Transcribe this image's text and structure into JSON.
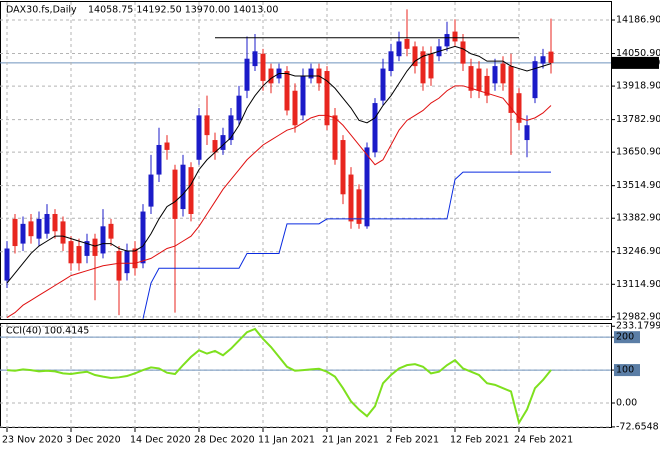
{
  "chart_data": [
    {
      "type": "candlestick",
      "title": "DAX30.fs,Daily",
      "subtitle": "14058.75 14192.50 13970.00 14013.00",
      "categories": [
        "23 Nov 2020",
        null,
        null,
        null,
        null,
        null,
        null,
        null,
        "3 Dec 2020",
        null,
        null,
        null,
        null,
        null,
        null,
        null,
        "14 Dec 2020",
        null,
        null,
        null,
        null,
        null,
        null,
        null,
        "28 Dec 2020",
        null,
        null,
        null,
        null,
        null,
        null,
        null,
        "11 Jan 2021",
        null,
        null,
        null,
        null,
        null,
        null,
        null,
        "21 Jan 2021",
        null,
        null,
        null,
        null,
        null,
        null,
        null,
        "2 Feb 2021",
        null,
        null,
        null,
        null,
        null,
        null,
        null,
        "12 Feb 2021",
        null,
        null,
        null,
        null,
        null,
        null,
        null,
        "24 Feb 2021",
        null,
        null,
        null,
        null
      ],
      "open": [
        13130,
        13380,
        13280,
        13370,
        13300,
        13320,
        13400,
        13370,
        13290,
        13270,
        13230,
        13300,
        13240,
        13360,
        13250,
        13160,
        13260,
        13200,
        13430,
        13560,
        13690,
        13580,
        13420,
        13590,
        13620,
        13800,
        13700,
        13660,
        13700,
        13780,
        13900,
        14000,
        14050,
        13990,
        13950,
        13980,
        13900,
        13800,
        13950,
        13990,
        13980,
        13800,
        13700,
        13560,
        13500,
        13350,
        13650,
        13860,
        13980,
        14040,
        14110,
        14080,
        14060,
        14050,
        14040,
        14080,
        14140,
        14100,
        14000,
        13990,
        13960,
        13930,
        14010,
        14000,
        13890,
        13700,
        13870,
        14010,
        14058.75
      ],
      "high": [
        13290,
        13400,
        13390,
        13400,
        13410,
        13440,
        13420,
        13390,
        13310,
        13300,
        13320,
        13320,
        13420,
        13380,
        13270,
        13280,
        13290,
        13440,
        13640,
        13750,
        13720,
        13600,
        13640,
        13610,
        13830,
        13880,
        13730,
        13750,
        13830,
        13920,
        14120,
        14130,
        14070,
        14010,
        14010,
        14000,
        13930,
        13990,
        14010,
        14010,
        14000,
        13830,
        13720,
        13590,
        13520,
        13690,
        13870,
        14030,
        14090,
        14140,
        14230,
        14100,
        14080,
        14080,
        14110,
        14180,
        14190,
        14130,
        14030,
        14020,
        13990,
        14030,
        14040,
        14050,
        13910,
        13800,
        14040,
        14070,
        14192.5
      ],
      "low": [
        13100,
        13240,
        13250,
        13280,
        13270,
        13300,
        13300,
        13250,
        13170,
        13170,
        13200,
        13050,
        13220,
        13270,
        12990,
        13130,
        13150,
        13180,
        13400,
        13530,
        13620,
        13000,
        13390,
        13370,
        13600,
        13680,
        13620,
        13640,
        13680,
        13760,
        13870,
        13980,
        13900,
        13890,
        13930,
        13800,
        13730,
        13780,
        13930,
        13900,
        13740,
        13600,
        13440,
        13340,
        13340,
        13340,
        13630,
        13840,
        13960,
        14020,
        14040,
        13970,
        13900,
        13920,
        14020,
        14060,
        14080,
        13980,
        13870,
        13870,
        13850,
        13900,
        13900,
        13640,
        13740,
        13630,
        13850,
        13990,
        13970
      ],
      "close": [
        13260,
        13270,
        13360,
        13310,
        13380,
        13400,
        13330,
        13280,
        13200,
        13200,
        13290,
        13230,
        13350,
        13300,
        13130,
        13250,
        13180,
        13410,
        13560,
        13680,
        13660,
        13380,
        13600,
        13400,
        13800,
        13720,
        13650,
        13720,
        13800,
        13880,
        14030,
        14060,
        13940,
        13930,
        13990,
        13820,
        13760,
        13960,
        13990,
        13930,
        13760,
        13620,
        13480,
        13370,
        13360,
        13670,
        13850,
        13990,
        14060,
        14100,
        14070,
        14000,
        13930,
        13950,
        14080,
        14130,
        14100,
        14010,
        13900,
        13900,
        13880,
        14000,
        13930,
        13810,
        13770,
        13760,
        14020,
        14040,
        14013
      ],
      "up_color": "#1b1bc8",
      "down_color": "#e8261f",
      "series": [
        {
          "color": "#000000",
          "values": [
            13120,
            13160,
            13200,
            13240,
            13270,
            13290,
            13310,
            13310,
            13300,
            13290,
            13280,
            13270,
            13280,
            13280,
            13260,
            13250,
            13250,
            13270,
            13320,
            13380,
            13430,
            13450,
            13480,
            13520,
            13580,
            13620,
            13650,
            13680,
            13710,
            13760,
            13830,
            13880,
            13920,
            13950,
            13970,
            13970,
            13960,
            13960,
            13960,
            13960,
            13940,
            13910,
            13870,
            13830,
            13780,
            13770,
            13790,
            13840,
            13880,
            13930,
            13980,
            14020,
            14040,
            14050,
            14060,
            14070,
            14080,
            14070,
            14050,
            14040,
            14020,
            14020,
            14020,
            14000,
            13990,
            13980,
            13990,
            14000,
            14010
          ]
        },
        {
          "color": "#e01010",
          "values": [
            12980,
            13000,
            13030,
            13050,
            13070,
            13090,
            13110,
            13130,
            13150,
            13160,
            13170,
            13180,
            13190,
            13195,
            13200,
            13200,
            13200,
            13210,
            13220,
            13240,
            13260,
            13270,
            13290,
            13310,
            13350,
            13400,
            13450,
            13500,
            13540,
            13580,
            13620,
            13650,
            13680,
            13700,
            13720,
            13740,
            13750,
            13770,
            13790,
            13800,
            13800,
            13790,
            13760,
            13720,
            13680,
            13640,
            13600,
            13620,
            13680,
            13740,
            13780,
            13800,
            13820,
            13850,
            13870,
            13900,
            13920,
            13920,
            13910,
            13900,
            13890,
            13880,
            13870,
            13830,
            13790,
            13780,
            13790,
            13810,
            13840
          ]
        },
        {
          "color": "#0a2be0",
          "values": [
            null,
            null,
            null,
            null,
            null,
            null,
            null,
            null,
            null,
            null,
            null,
            null,
            null,
            null,
            null,
            null,
            null,
            12975,
            13120,
            13180,
            13180,
            13180,
            13180,
            13180,
            13180,
            13180,
            13180,
            13180,
            13180,
            13180,
            13240,
            13240,
            13240,
            13240,
            13240,
            13360,
            13360,
            13360,
            13360,
            13360,
            13380,
            13380,
            13380,
            13380,
            13380,
            13380,
            13380,
            13380,
            13380,
            13380,
            13380,
            13380,
            13380,
            13380,
            13380,
            13380,
            13540,
            13570,
            13570,
            13570,
            13570,
            13570,
            13570,
            13570,
            13570,
            13570,
            13570,
            13570,
            13570
          ]
        },
        {
          "color": "#000000",
          "values": [
            null,
            null,
            null,
            null,
            null,
            null,
            null,
            null,
            null,
            null,
            null,
            null,
            null,
            null,
            null,
            null,
            null,
            null,
            null,
            null,
            null,
            null,
            null,
            null,
            null,
            null,
            14115,
            14115,
            14115,
            14115,
            14115,
            14115,
            14115,
            14115,
            14115,
            14115,
            14115,
            14115,
            14115,
            14115,
            14115,
            14115,
            14115,
            14115,
            14115,
            14115,
            14115,
            14115,
            14115,
            14115,
            14115,
            14115,
            14115,
            14115,
            14115,
            14115,
            14115,
            14115,
            14115,
            14115,
            14115,
            14115,
            14115,
            14115,
            14115,
            null,
            null,
            null,
            null
          ]
        }
      ],
      "current": {
        "value": 14013,
        "label": "14013.00"
      },
      "ylim": [
        12970,
        14260
      ],
      "yticks": [
        {
          "value": 14186.9,
          "label": "14186.90"
        },
        {
          "value": 14050.9,
          "label": "14050.90"
        },
        {
          "value": 13918.9,
          "label": "13918.90"
        },
        {
          "value": 13782.9,
          "label": "13782.90"
        },
        {
          "value": 13650.9,
          "label": "13650.90"
        },
        {
          "value": 13514.9,
          "label": "13514.90"
        },
        {
          "value": 13382.9,
          "label": "13382.90"
        },
        {
          "value": 13246.9,
          "label": "13246.90"
        },
        {
          "value": 13114.9,
          "label": "13114.90"
        },
        {
          "value": 12982.9,
          "label": "12982.90"
        }
      ],
      "grid": true
    },
    {
      "type": "line",
      "title": "CCI(40)",
      "series": [
        {
          "color": "#7ee01e",
          "values": [
            100,
            98,
            102,
            100,
            96,
            98,
            96,
            90,
            88,
            92,
            95,
            85,
            80,
            76,
            78,
            82,
            90,
            100,
            108,
            105,
            92,
            88,
            115,
            140,
            160,
            150,
            158,
            145,
            165,
            190,
            215,
            225,
            195,
            170,
            140,
            110,
            98,
            100,
            102,
            104,
            95,
            80,
            45,
            5,
            -20,
            -40,
            -10,
            60,
            85,
            105,
            115,
            118,
            110,
            90,
            95,
            115,
            130,
            105,
            95,
            85,
            60,
            55,
            45,
            35,
            -60,
            -20,
            45,
            70,
            100.4145
          ]
        }
      ],
      "ylim": [
        -76,
        240
      ],
      "yticks": [
        233.1799,
        200,
        100,
        {
          "value": 0,
          "label": "0.00"
        },
        -72.6548
      ],
      "levels": [
        200,
        100
      ],
      "grid": true
    }
  ]
}
